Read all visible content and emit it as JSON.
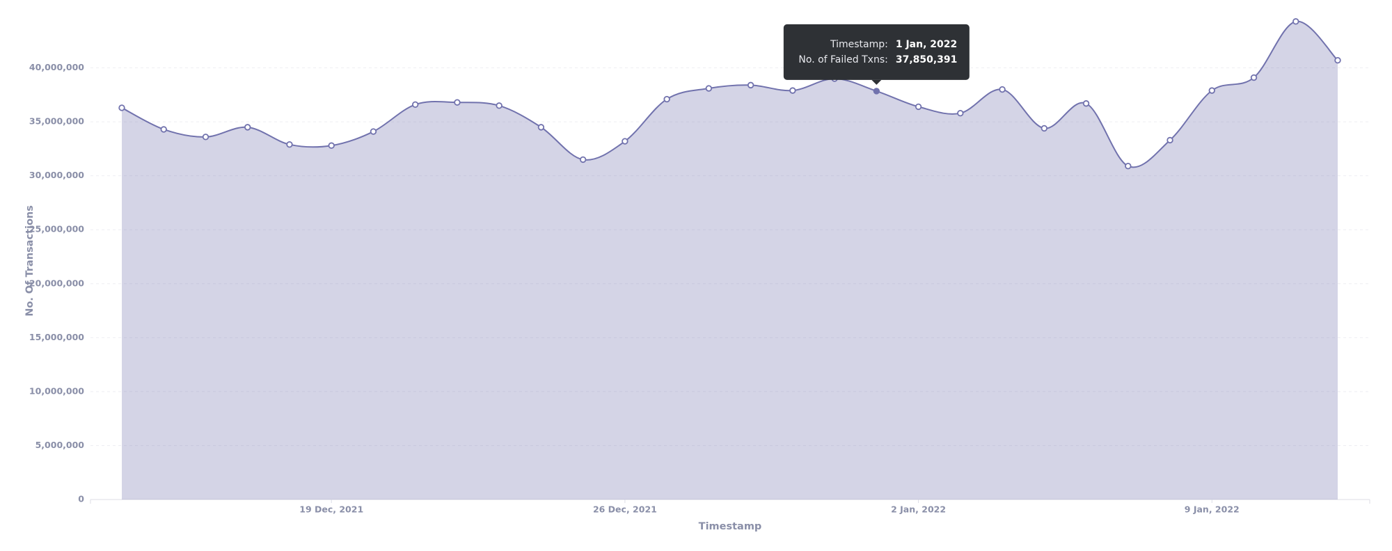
{
  "chart_data": {
    "type": "area",
    "x_label": "Timestamp",
    "y_label": "No. Of Transactions",
    "x": [
      "2021-12-14",
      "2021-12-15",
      "2021-12-16",
      "2021-12-17",
      "2021-12-18",
      "2021-12-19",
      "2021-12-20",
      "2021-12-21",
      "2021-12-22",
      "2021-12-23",
      "2021-12-24",
      "2021-12-25",
      "2021-12-26",
      "2021-12-27",
      "2021-12-28",
      "2021-12-29",
      "2021-12-30",
      "2021-12-31",
      "2022-01-01",
      "2022-01-02",
      "2022-01-03",
      "2022-01-04",
      "2022-01-05",
      "2022-01-06",
      "2022-01-07",
      "2022-01-08",
      "2022-01-09",
      "2022-01-10",
      "2022-01-11",
      "2022-01-12"
    ],
    "series": [
      {
        "name": "No. of Failed Txns",
        "color": "#7172ad",
        "values": [
          36300000,
          34300000,
          33600000,
          34500000,
          32900000,
          32800000,
          34100000,
          36600000,
          36800000,
          36500000,
          34500000,
          31500000,
          33200000,
          37100000,
          38100000,
          38400000,
          37900000,
          39000000,
          37850391,
          36400000,
          35800000,
          38000000,
          34400000,
          36700000,
          30900000,
          33300000,
          37900000,
          39100000,
          44300000,
          40700000
        ]
      }
    ],
    "ylim": [
      0,
      45000000
    ],
    "yticks": [
      0,
      {
        "value": 5000000,
        "label": "5,000,000"
      },
      {
        "value": 10000000,
        "label": "10,000,000"
      },
      {
        "value": 15000000,
        "label": "15,000,000"
      },
      {
        "value": 20000000,
        "label": "20,000,000"
      },
      {
        "value": 25000000,
        "label": "25,000,000"
      },
      {
        "value": 30000000,
        "label": "30,000,000"
      },
      {
        "value": 35000000,
        "label": "35,000,000"
      },
      {
        "value": 40000000,
        "label": "40,000,000"
      }
    ],
    "xticks": [
      {
        "value": "2021-12-19",
        "label": "19 Dec, 2021"
      },
      {
        "value": "2021-12-26",
        "label": "26 Dec, 2021"
      },
      {
        "value": "2022-01-02",
        "label": "2 Jan, 2022"
      },
      {
        "value": "2022-01-09",
        "label": "9 Jan, 2022"
      }
    ],
    "grid": true,
    "tooltip": {
      "index": 18,
      "rows": [
        {
          "label": "Timestamp:",
          "value": "1 Jan, 2022"
        },
        {
          "label": "No. of Failed Txns:",
          "value": "37,850,391"
        }
      ]
    }
  }
}
